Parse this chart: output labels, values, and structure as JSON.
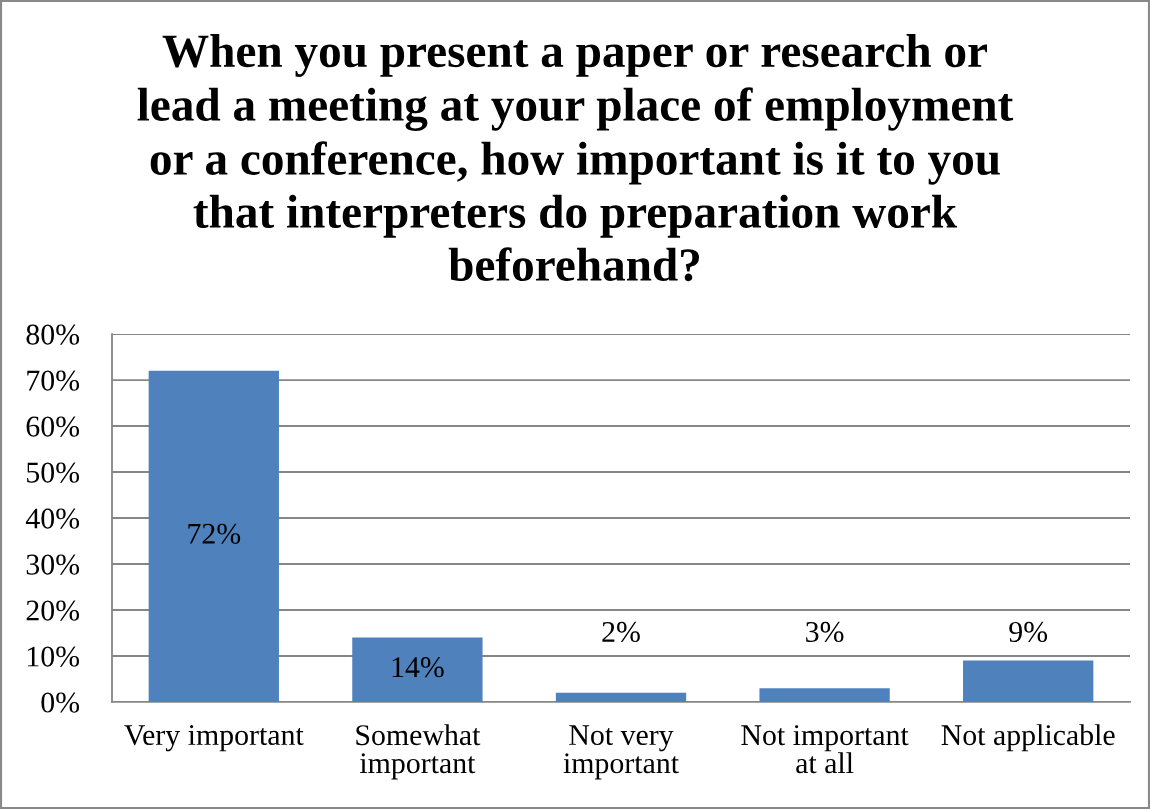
{
  "chart_data": {
    "type": "bar",
    "title": "When you present a paper or research or lead a meeting at your place of employment or a conference, how important is it to you that interpreters do preparation work beforehand?",
    "categories": [
      "Very important",
      "Somewhat important",
      "Not very important",
      "Not important at all",
      "Not applicable"
    ],
    "values": [
      72,
      14,
      2,
      3,
      9
    ],
    "value_labels": [
      "72%",
      "14%",
      "2%",
      "3%",
      "9%"
    ],
    "color": "#4f81bd",
    "ylim": [
      0,
      80
    ],
    "yticks": [
      {
        "value": 0,
        "label": "0%"
      },
      {
        "value": 10,
        "label": "10%"
      },
      {
        "value": 20,
        "label": "20%"
      },
      {
        "value": 30,
        "label": "30%"
      },
      {
        "value": 40,
        "label": "40%"
      },
      {
        "value": 50,
        "label": "50%"
      },
      {
        "value": 60,
        "label": "60%"
      },
      {
        "value": 70,
        "label": "70%"
      },
      {
        "value": 80,
        "label": "80%"
      }
    ],
    "grid": "y"
  }
}
